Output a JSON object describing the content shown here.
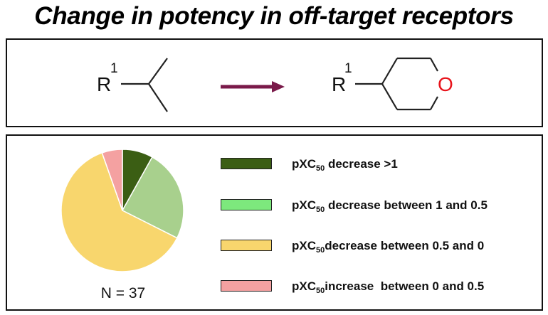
{
  "title": "Change in potency in off-target receptors",
  "scheme": {
    "left_label": "R",
    "left_superscript": "1",
    "right_label": "R",
    "right_superscript": "1",
    "heteroatom": "O",
    "arrow_color": "#7a1a4a",
    "heteroatom_color": "#e8131b"
  },
  "chart_data": {
    "type": "pie",
    "title": "Change in potency in off-target receptors",
    "total_label": "N = 37",
    "n": 37,
    "start_angle_deg": 0,
    "direction": "clockwise",
    "slices": [
      {
        "label_prefix": "pXC",
        "label_sub": "50",
        "label_suffix": " decrease >1",
        "value": 3,
        "color": "#3b5e14"
      },
      {
        "label_prefix": "pXC",
        "label_sub": "50",
        "label_suffix": " decrease between 1 and 0.5",
        "value": 9,
        "color": "#a8d08d"
      },
      {
        "label_prefix": "pXC",
        "label_sub": "50",
        "label_suffix": "decrease between 0.5 and 0",
        "value": 23,
        "color": "#f8d66d"
      },
      {
        "label_prefix": "pXC",
        "label_sub": "50",
        "label_suffix": "increase  between 0 and 0.5",
        "value": 2,
        "color": "#f4a1a1"
      }
    ],
    "legend": [
      {
        "label_prefix": "pXC",
        "label_sub": "50",
        "label_suffix": " decrease >1",
        "color": "#3b5e14"
      },
      {
        "label_prefix": "pXC",
        "label_sub": "50",
        "label_suffix": " decrease between 1 and 0.5",
        "color": "#7de87d"
      },
      {
        "label_prefix": "pXC",
        "label_sub": "50",
        "label_suffix": "decrease between 0.5 and 0",
        "color": "#f8d66d"
      },
      {
        "label_prefix": "pXC",
        "label_sub": "50",
        "label_suffix": "increase  between 0 and 0.5",
        "color": "#f4a1a1"
      }
    ]
  }
}
